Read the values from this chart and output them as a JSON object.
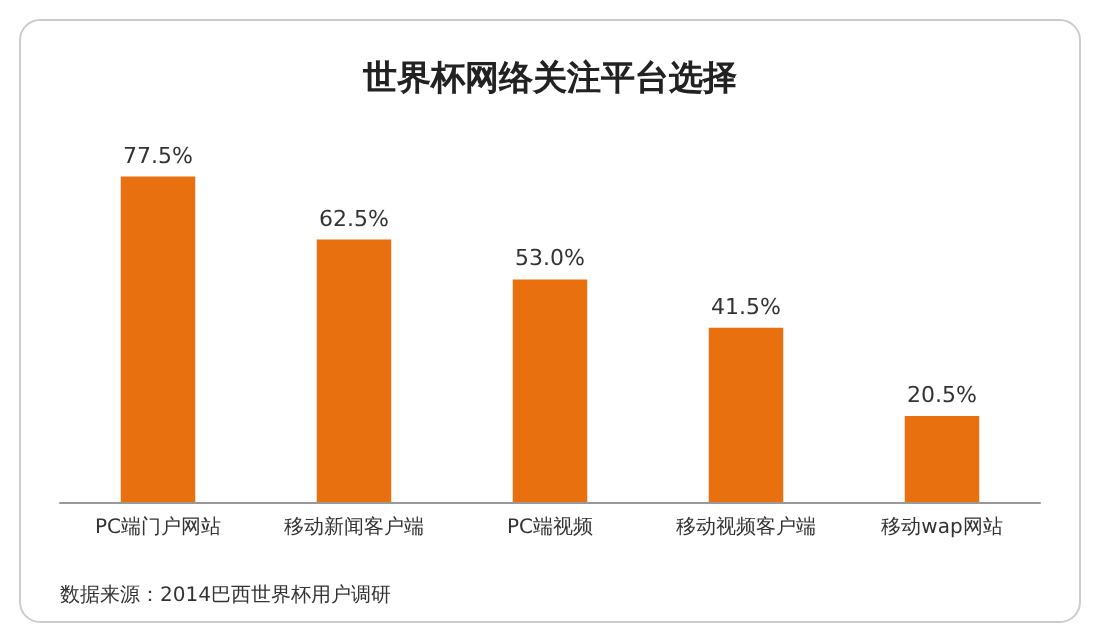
{
  "chart_data": {
    "type": "bar",
    "title": "世界杯网络关注平台选择",
    "categories": [
      "PC端门户网站",
      "移动新闻客户端",
      "PC端视频",
      "移动视频客户端",
      "移动wap网站"
    ],
    "values": [
      77.5,
      62.5,
      53.0,
      41.5,
      20.5
    ],
    "value_labels": [
      "77.5%",
      "62.5%",
      "53.0%",
      "41.5%",
      "20.5%"
    ],
    "color": "#e8700f",
    "annotations": [
      "数据来源：2014巴西世界杯用户调研"
    ]
  }
}
